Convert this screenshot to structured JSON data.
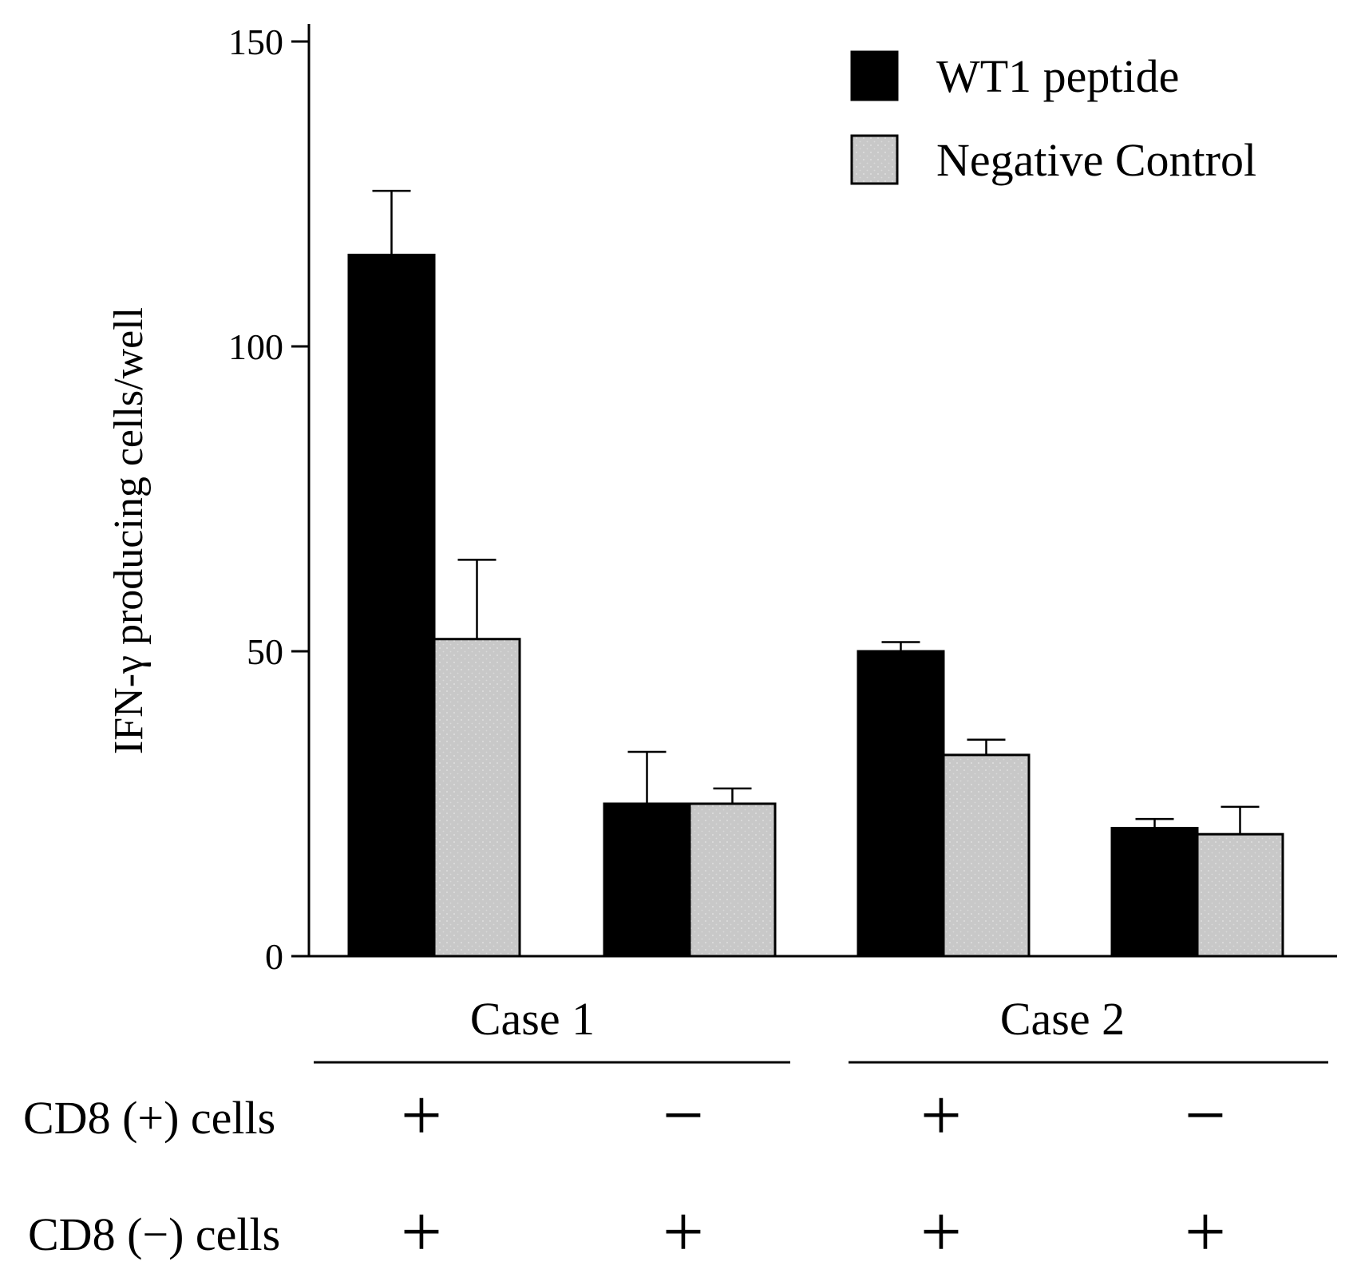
{
  "chart_data": {
    "type": "bar",
    "title": "",
    "xlabel": "",
    "ylabel": "IFN-γ producing cells/well",
    "ylim": [
      0,
      150
    ],
    "yticks": [
      0,
      50,
      100,
      150
    ],
    "grid": false,
    "legend_position": "top-right",
    "categories": [
      "Case 1 CD8(+)/CD8(−)",
      "Case 1 CD8(−) only",
      "Case 2 CD8(+)/CD8(−)",
      "Case 2 CD8(−) only"
    ],
    "series": [
      {
        "name": "WT1 peptide",
        "color": "#000000",
        "values": [
          115,
          25,
          50,
          21
        ],
        "errors": [
          10.5,
          8.5,
          1.5,
          1.5
        ]
      },
      {
        "name": "Negative Control",
        "color": "#c8c8c8",
        "values": [
          52,
          25,
          33,
          20
        ],
        "errors": [
          13,
          2.5,
          2.5,
          4.5
        ]
      }
    ],
    "groups": [
      {
        "label": "Case 1",
        "categories": [
          0,
          1
        ]
      },
      {
        "label": "Case 2",
        "categories": [
          2,
          3
        ]
      }
    ],
    "conditions": [
      {
        "label": "CD8 (+) cells",
        "signs": [
          "+",
          "−",
          "+",
          "−"
        ]
      },
      {
        "label": "CD8 (−) cells",
        "signs": [
          "+",
          "+",
          "+",
          "+"
        ]
      }
    ]
  }
}
